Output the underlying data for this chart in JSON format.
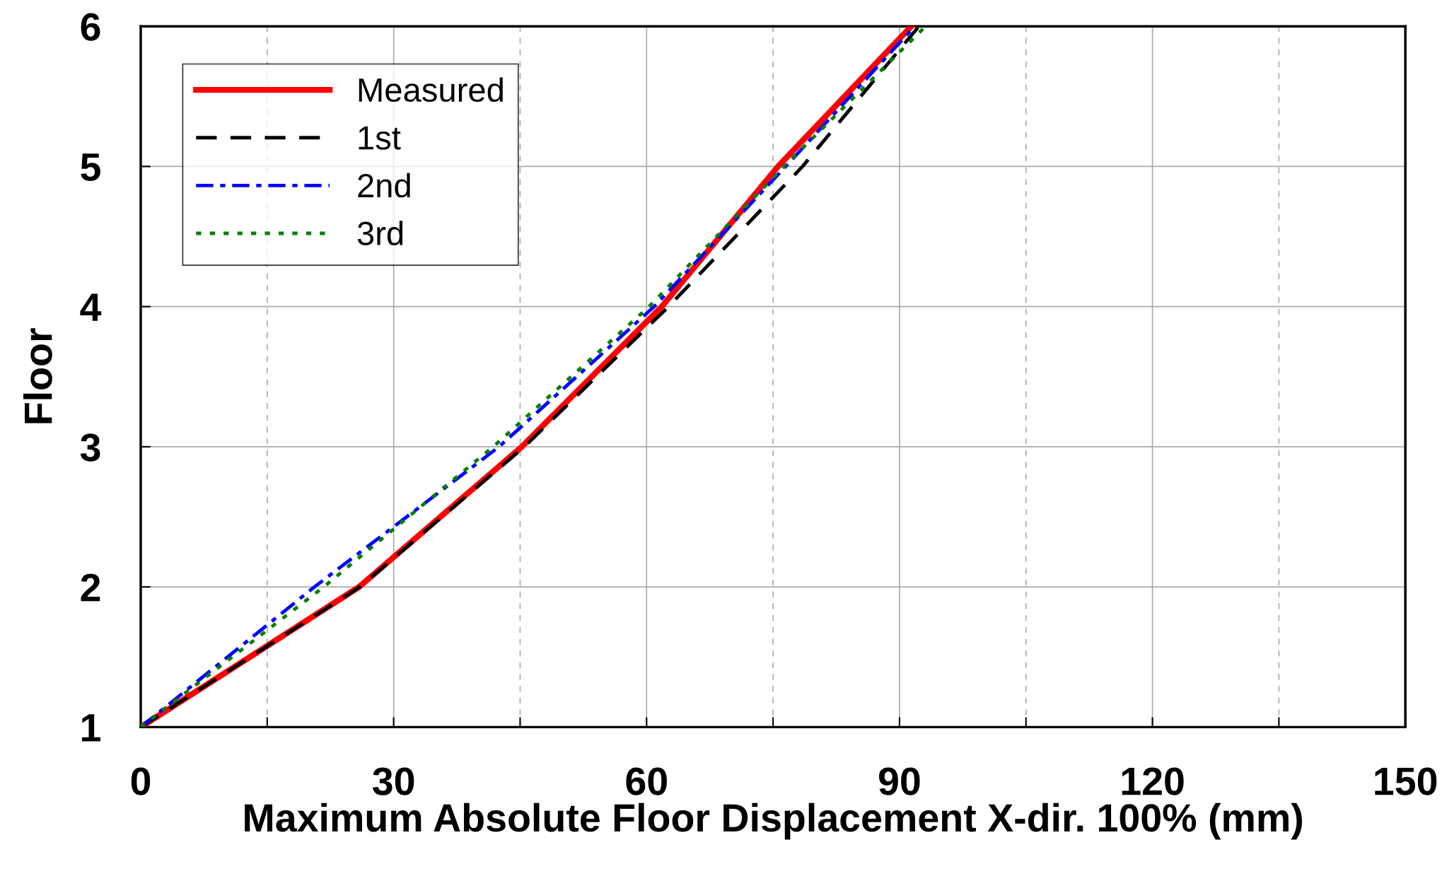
{
  "chart_data": {
    "type": "line",
    "xlabel": "Maximum Absolute Floor Displacement X-dir. 100% (mm)",
    "ylabel": "Floor",
    "xlim": [
      0,
      150
    ],
    "ylim": [
      1,
      6
    ],
    "xticks": [
      0,
      {
        "value": 15,
        "label": null
      },
      30,
      {
        "value": 45,
        "label": null
      },
      60,
      {
        "value": 75,
        "label": null
      },
      90,
      {
        "value": 105,
        "label": null
      },
      120,
      {
        "value": 135,
        "label": null
      },
      150
    ],
    "yticks": [
      1,
      2,
      3,
      4,
      5,
      6
    ],
    "grid": true,
    "legend": "top left",
    "series": [
      {
        "name": "Measured",
        "color": "#ff0000",
        "line_style": "solid",
        "x": [
          0,
          25.9,
          45.2,
          61.8,
          75.6,
          91.4
        ],
        "values": [
          1,
          2,
          3,
          4,
          5,
          6
        ]
      },
      {
        "name": "1st",
        "color": "#000000",
        "line_style": "dashed",
        "x": [
          0,
          26.0,
          45.5,
          62.6,
          78.5,
          92.3
        ],
        "values": [
          1,
          2,
          3,
          4,
          5,
          6
        ]
      },
      {
        "name": "2nd",
        "color": "#0000ff",
        "line_style": "dashdot",
        "x": [
          0,
          20.6,
          42.5,
          60.9,
          76.5,
          91.8
        ],
        "values": [
          1,
          2,
          3,
          4,
          5,
          6
        ]
      },
      {
        "name": "3rd",
        "color": "#008000",
        "line_style": "dotted",
        "x": [
          0,
          21.7,
          41.8,
          60.3,
          76.3,
          93.1
        ],
        "values": [
          1,
          2,
          3,
          4,
          5,
          6
        ]
      }
    ]
  }
}
